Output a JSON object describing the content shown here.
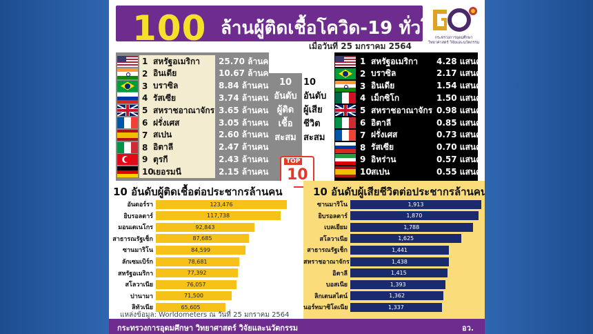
{
  "header": {
    "big_number": "100",
    "title": "ล้านผู้ติดเชื้อโควิด-19 ทั่วโลก",
    "date": "เมื่อวันที่ 25 มกราคม 2564",
    "logo_text": "กระทรวงการอุดมศึกษา วิทยาศาสตร์ วิจัยและนวัตกรรม"
  },
  "top10_infected": {
    "label_lines": [
      "10",
      "อันดับ",
      "ผู้ติด",
      "เชื้อ",
      "สะสม"
    ],
    "rows": [
      {
        "rank": "1",
        "country": "สหรัฐอเมริกา",
        "value": "25.70 ล้านคน",
        "flag": "us"
      },
      {
        "rank": "2",
        "country": "อินเดีย",
        "value": "10.67 ล้านคน",
        "flag": "in"
      },
      {
        "rank": "3",
        "country": "บราซิล",
        "value": "8.84 ล้านคน",
        "flag": "br"
      },
      {
        "rank": "4",
        "country": "รัสเซีย",
        "value": "3.74 ล้านคน",
        "flag": "ru"
      },
      {
        "rank": "5",
        "country": "สหราชอาณาจักร",
        "value": "3.65 ล้านคน",
        "flag": "gb"
      },
      {
        "rank": "6",
        "country": "ฝรั่งเศส",
        "value": "3.05 ล้านคน",
        "flag": "fr"
      },
      {
        "rank": "7",
        "country": "สเปน",
        "value": "2.60 ล้านคน",
        "flag": "es"
      },
      {
        "rank": "8",
        "country": "อิตาลี",
        "value": "2.47 ล้านคน",
        "flag": "it"
      },
      {
        "rank": "9",
        "country": "ตุรกี",
        "value": "2.43 ล้านคน",
        "flag": "tr"
      },
      {
        "rank": "10",
        "country": "เยอรมนี",
        "value": "2.15 ล้านคน",
        "flag": "de"
      }
    ]
  },
  "top10_deaths": {
    "label_lines": [
      "10",
      "อันดับ",
      "ผู้เสีย",
      "ชีวิต",
      "สะสม"
    ],
    "rows": [
      {
        "rank": "1",
        "country": "สหรัฐอเมริกา",
        "value": "4.28 แสนคน",
        "flag": "us"
      },
      {
        "rank": "2",
        "country": "บราซิล",
        "value": "2.17 แสนคน",
        "flag": "br"
      },
      {
        "rank": "3",
        "country": "อินเดีย",
        "value": "1.54 แสนคน",
        "flag": "in"
      },
      {
        "rank": "4",
        "country": "เม็กซิโก",
        "value": "1.50 แสนคน",
        "flag": "mx"
      },
      {
        "rank": "5",
        "country": "สหราชอาณาจักร",
        "value": "0.98 แสนคน",
        "flag": "gb"
      },
      {
        "rank": "6",
        "country": "อิตาลี",
        "value": "0.85 แสนคน",
        "flag": "it"
      },
      {
        "rank": "7",
        "country": "ฝรั่งเศส",
        "value": "0.73 แสนคน",
        "flag": "fr"
      },
      {
        "rank": "8",
        "country": "รัสเซีย",
        "value": "0.70 แสนคน",
        "flag": "ru"
      },
      {
        "rank": "9",
        "country": "อิหร่าน",
        "value": "0.57 แสนคน",
        "flag": "ir"
      },
      {
        "rank": "10",
        "country": "สเปน",
        "value": "0.55 แสนคน",
        "flag": "es"
      }
    ]
  },
  "badge": {
    "top": "TOP",
    "number": "10"
  },
  "chart_data": [
    {
      "type": "bar",
      "title": "10 อันดับผู้ติดเชื้อต่อประชากรล้านคน",
      "categories": [
        "อันดอร์รา",
        "ยิบรอลตาร์",
        "มอนเตเนโกร",
        "สาธารณรัฐเช็ก",
        "ซานมาริโน",
        "ลักเซมเบิร์ก",
        "สหรัฐอเมริกา",
        "สโลวาเนีย",
        "ปานามา",
        "ลิทัวเนีย"
      ],
      "values": [
        123476,
        117738,
        92843,
        87685,
        84599,
        78681,
        77392,
        76057,
        71500,
        65605
      ],
      "labels": [
        "123,476",
        "117,738",
        "92,843",
        "87,685",
        "84,599",
        "78,681",
        "77,392",
        "76,057",
        "71,500",
        "65,605"
      ],
      "color": "#f6c21a",
      "orientation": "horizontal"
    },
    {
      "type": "bar",
      "title": "10 อันดับผู้เสียชีวิตต่อประชากรล้านคน",
      "categories": [
        "ซานมาริโน",
        "ยิบรอลตาร์",
        "เบลเยียม",
        "สโลวาเนีย",
        "สาธารณรัฐเช็ก",
        "สหราชอาณาจักร",
        "อิตาลี",
        "บอสเนีย",
        "ลิกเตนสไตน์",
        "นอร์ทมาซิโดเนีย"
      ],
      "values": [
        1913,
        1870,
        1788,
        1625,
        1441,
        1438,
        1415,
        1393,
        1362,
        1337
      ],
      "labels": [
        "1,913",
        "1,870",
        "1,788",
        "1,625",
        "1,441",
        "1,438",
        "1,415",
        "1,393",
        "1,362",
        "1,337"
      ],
      "color": "#1a2b6d",
      "orientation": "horizontal"
    }
  ],
  "source": "แหล่งข้อมูล: Worldometers ณ วันที่ 25 มกราคม 2564",
  "footer": {
    "left": "กระทรวงการอุดมศึกษา วิทยาศาสตร์ วิจัยและนวัตกรรม",
    "right": "อว."
  }
}
